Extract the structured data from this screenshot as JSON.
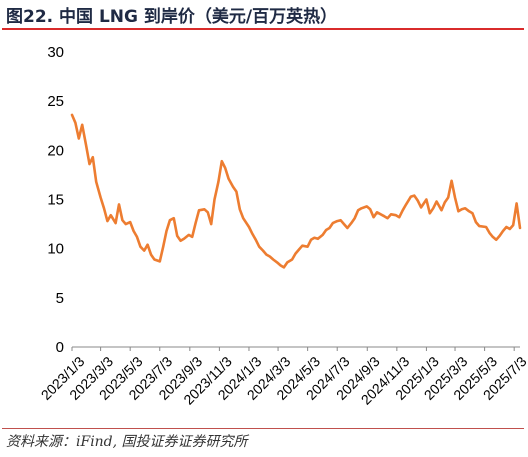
{
  "title": "图22. 中国 LNG 到岸价（美元/百万英热）",
  "source": "资料来源：iFind, 国投证券证券研究所",
  "colors": {
    "line": "#ED7D31",
    "title_rule": "#D92B2B",
    "title_text": "#1F2A44"
  },
  "chart_data": {
    "type": "line",
    "title": "中国 LNG 到岸价（美元/百万英热）",
    "xlabel": "",
    "ylabel": "",
    "ylim": [
      0,
      30
    ],
    "yticks": [
      "0",
      "5",
      "10",
      "15",
      "20",
      "25",
      "30"
    ],
    "xticks": [
      "2023/1/3",
      "2023/3/3",
      "2023/5/3",
      "2023/7/3",
      "2023/9/3",
      "2023/11/3",
      "2024/1/3",
      "2024/3/3",
      "2024/5/3",
      "2024/7/3",
      "2024/9/3",
      "2024/11/3",
      "2025/1/3",
      "2025/3/3",
      "2025/5/3",
      "2025/7/3"
    ],
    "grid": false,
    "legend": "none",
    "series": [
      {
        "x": [
          "2023/1/3",
          "2023/1/10",
          "2023/1/17",
          "2023/1/24",
          "2023/2/1",
          "2023/2/8",
          "2023/2/15",
          "2023/2/22",
          "2023/3/3",
          "2023/3/10",
          "2023/3/17",
          "2023/3/24",
          "2023/4/3",
          "2023/4/10",
          "2023/4/17",
          "2023/4/24",
          "2023/5/3",
          "2023/5/10",
          "2023/5/17",
          "2023/5/24",
          "2023/6/1",
          "2023/6/8",
          "2023/6/15",
          "2023/6/22",
          "2023/7/3",
          "2023/7/10",
          "2023/7/17",
          "2023/7/24",
          "2023/8/1",
          "2023/8/8",
          "2023/8/15",
          "2023/8/22",
          "2023/9/1",
          "2023/9/8",
          "2023/9/15",
          "2023/9/22",
          "2023/10/3",
          "2023/10/10",
          "2023/10/17",
          "2023/10/24",
          "2023/11/1",
          "2023/11/8",
          "2023/11/15",
          "2023/11/22",
          "2023/12/1",
          "2023/12/8",
          "2023/12/15",
          "2023/12/22",
          "2024/1/3",
          "2024/1/10",
          "2024/1/17",
          "2024/1/24",
          "2024/2/1",
          "2024/2/8",
          "2024/2/15",
          "2024/2/22",
          "2024/3/1",
          "2024/3/8",
          "2024/3/15",
          "2024/3/22",
          "2024/4/1",
          "2024/4/8",
          "2024/4/15",
          "2024/4/22",
          "2024/5/3",
          "2024/5/10",
          "2024/5/17",
          "2024/5/24",
          "2024/6/3",
          "2024/6/10",
          "2024/6/17",
          "2024/6/24",
          "2024/7/3",
          "2024/7/10",
          "2024/7/17",
          "2024/7/24",
          "2024/8/1",
          "2024/8/8",
          "2024/8/15",
          "2024/8/22",
          "2024/9/2",
          "2024/9/9",
          "2024/9/16",
          "2024/9/23",
          "2024/10/8",
          "2024/10/15",
          "2024/10/22",
          "2024/11/1",
          "2024/11/8",
          "2024/11/15",
          "2024/11/22",
          "2024/12/2",
          "2024/12/9",
          "2024/12/16",
          "2024/12/23",
          "2025/1/3",
          "2025/1/10",
          "2025/1/17",
          "2025/1/24",
          "2025/2/3",
          "2025/2/10",
          "2025/2/17",
          "2025/2/24",
          "2025/3/3",
          "2025/3/10",
          "2025/3/17",
          "2025/3/24",
          "2025/4/1",
          "2025/4/8",
          "2025/4/15",
          "2025/4/22",
          "2025/5/6",
          "2025/5/13",
          "2025/5/20",
          "2025/5/27",
          "2025/6/3",
          "2025/6/10",
          "2025/6/17",
          "2025/6/24",
          "2025/7/1",
          "2025/7/8",
          "2025/7/15"
        ],
        "values": [
          23.6,
          22.8,
          21.2,
          22.6,
          20.5,
          18.6,
          19.3,
          16.8,
          15.2,
          14.1,
          12.8,
          13.4,
          12.6,
          14.5,
          12.9,
          12.5,
          12.7,
          11.8,
          11.2,
          10.2,
          9.8,
          10.4,
          9.4,
          8.9,
          8.7,
          10.2,
          11.8,
          12.9,
          13.1,
          11.3,
          10.8,
          11.0,
          11.4,
          11.2,
          12.6,
          13.9,
          14.0,
          13.7,
          12.5,
          15.0,
          16.8,
          18.9,
          18.2,
          17.1,
          16.3,
          15.8,
          14.0,
          13.1,
          12.2,
          11.5,
          10.9,
          10.2,
          9.8,
          9.4,
          9.2,
          8.9,
          8.6,
          8.3,
          8.1,
          8.6,
          8.9,
          9.5,
          9.9,
          10.3,
          10.2,
          10.9,
          11.1,
          11.0,
          11.4,
          11.9,
          12.1,
          12.6,
          12.8,
          12.9,
          12.5,
          12.1,
          12.6,
          13.1,
          13.9,
          14.1,
          14.3,
          14.0,
          13.2,
          13.7,
          13.3,
          13.1,
          13.5,
          13.4,
          13.2,
          13.9,
          14.5,
          15.3,
          15.4,
          14.9,
          14.2,
          15.0,
          13.6,
          14.1,
          14.8,
          13.9,
          14.7,
          15.2,
          16.9,
          15.2,
          13.8,
          14.0,
          14.1,
          13.8,
          13.6,
          12.7,
          12.3,
          12.2,
          11.6,
          11.2,
          10.9,
          11.3,
          11.8,
          12.2,
          12.0,
          12.4,
          14.6,
          12.1
        ]
      }
    ]
  }
}
